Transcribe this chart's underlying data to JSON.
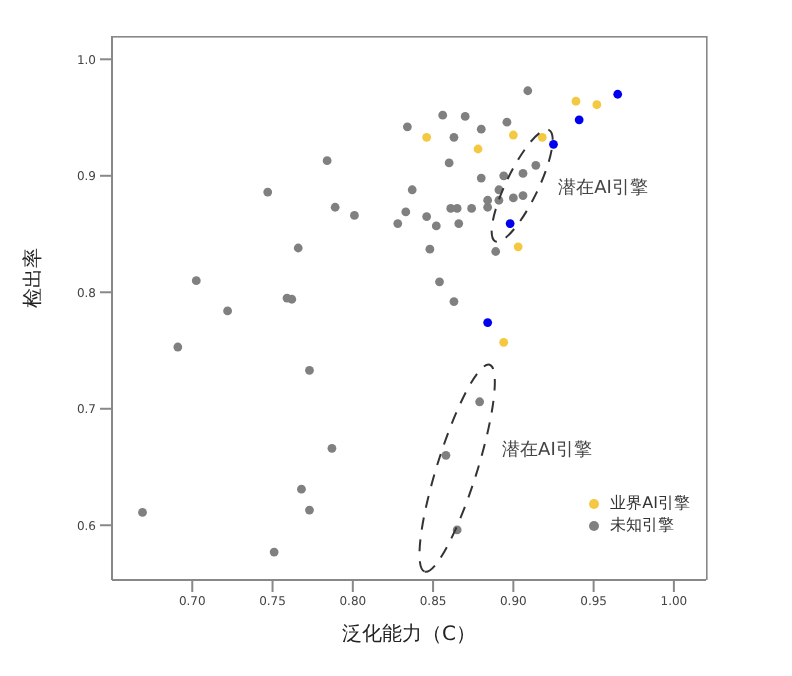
{
  "chart_data": {
    "type": "scatter",
    "xlabel": "泛化能力（C）",
    "ylabel": "检出率",
    "xlim": [
      0.65,
      1.02
    ],
    "ylim": [
      0.553,
      1.02
    ],
    "xticks": [
      {
        "value": 0.7,
        "label": "0.70"
      },
      {
        "value": 0.75,
        "label": "0.75"
      },
      {
        "value": 0.8,
        "label": "0.80"
      },
      {
        "value": 0.85,
        "label": "0.85"
      },
      {
        "value": 0.9,
        "label": "0.90"
      },
      {
        "value": 0.95,
        "label": "0.95"
      },
      {
        "value": 1.0,
        "label": "1.00"
      }
    ],
    "yticks": [
      {
        "value": 0.6,
        "label": "0.6"
      },
      {
        "value": 0.7,
        "label": "0.7"
      },
      {
        "value": 0.8,
        "label": "0.8"
      },
      {
        "value": 0.9,
        "label": "0.9"
      },
      {
        "value": 1.0,
        "label": "1.0"
      }
    ],
    "grid": false,
    "legend": "bottom right",
    "marker": "circle",
    "annotations": [
      "潜在AI引擎",
      "潜在AI引擎"
    ],
    "series": [
      {
        "color": "#0000ee",
        "x": [
          0.965,
          0.941,
          0.925,
          0.898,
          0.884
        ],
        "values": [
          0.97,
          0.948,
          0.927,
          0.859,
          0.774
        ]
      },
      {
        "name": "业界AI引擎",
        "color": "#f5c842",
        "x": [
          0.939,
          0.952,
          0.846,
          0.9,
          0.918,
          0.878,
          0.903,
          0.894
        ],
        "values": [
          0.964,
          0.961,
          0.933,
          0.935,
          0.933,
          0.923,
          0.839,
          0.757
        ]
      },
      {
        "name": "未知引擎",
        "color": "#808080",
        "x": [
          0.7025,
          0.722,
          0.759,
          0.762,
          0.766,
          0.747,
          0.784,
          0.789,
          0.801,
          0.828,
          0.909,
          0.834,
          0.856,
          0.87,
          0.88,
          0.896,
          0.863,
          0.86,
          0.914,
          0.88,
          0.894,
          0.906,
          0.837,
          0.891,
          0.884,
          0.891,
          0.9,
          0.906,
          0.861,
          0.865,
          0.874,
          0.884,
          0.833,
          0.846,
          0.852,
          0.866,
          0.848,
          0.889,
          0.854,
          0.863,
          0.879,
          0.858,
          0.865,
          0.691,
          0.773,
          0.787,
          0.768,
          0.773,
          0.669,
          0.751
        ],
        "values": [
          0.81,
          0.784,
          0.795,
          0.794,
          0.838,
          0.886,
          0.913,
          0.873,
          0.866,
          0.859,
          0.973,
          0.942,
          0.952,
          0.951,
          0.94,
          0.946,
          0.933,
          0.911,
          0.909,
          0.898,
          0.9,
          0.902,
          0.888,
          0.888,
          0.879,
          0.879,
          0.881,
          0.883,
          0.872,
          0.872,
          0.872,
          0.873,
          0.869,
          0.865,
          0.857,
          0.859,
          0.837,
          0.835,
          0.809,
          0.792,
          0.706,
          0.66,
          0.596,
          0.753,
          0.733,
          0.666,
          0.631,
          0.613,
          0.611,
          0.577
        ]
      }
    ]
  }
}
